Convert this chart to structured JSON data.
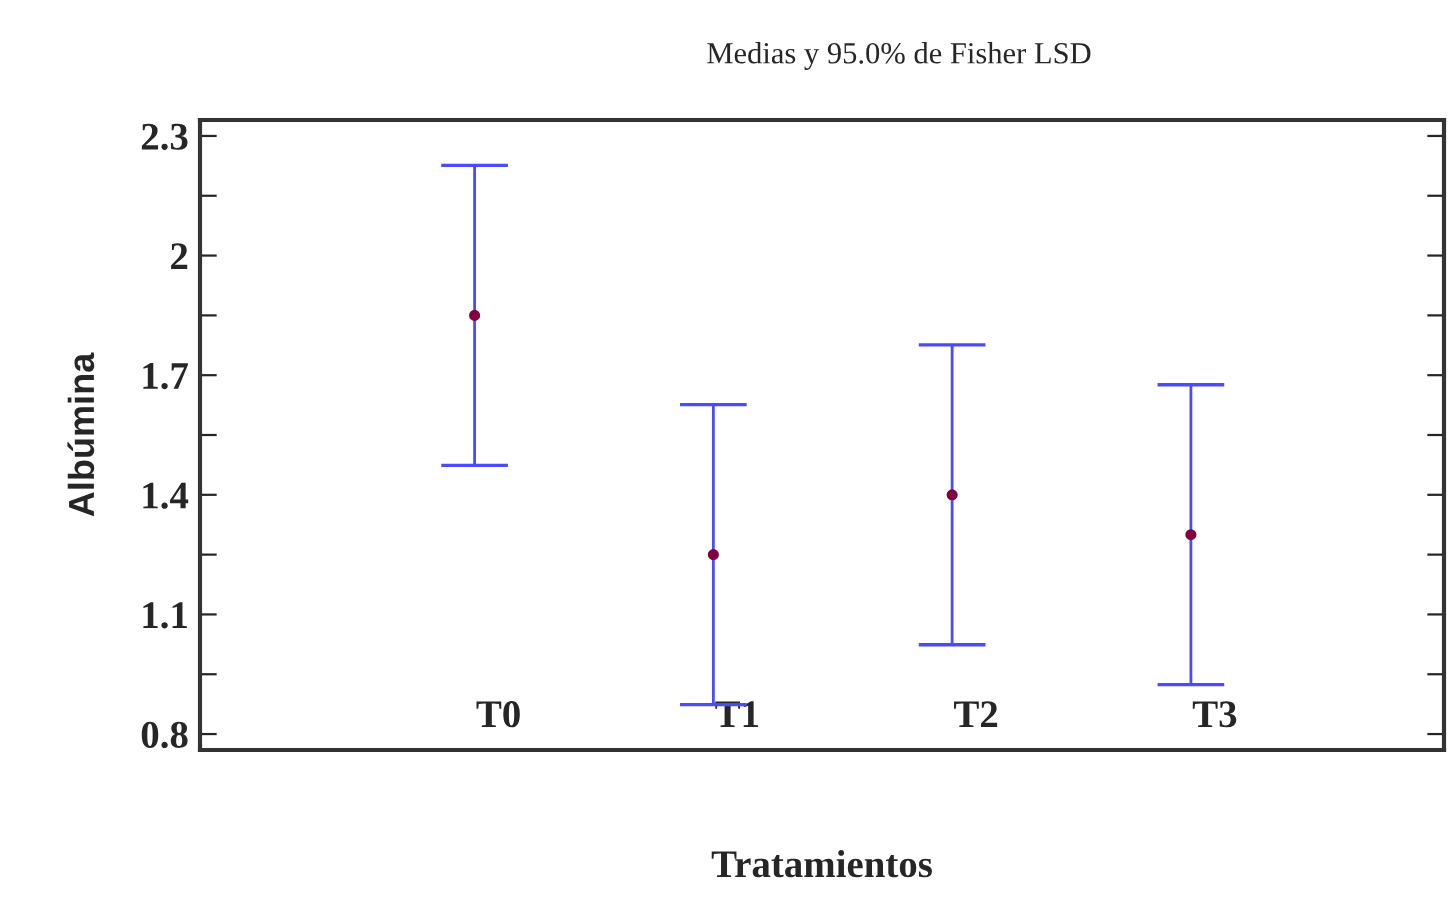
{
  "chart_data": {
    "type": "scatter",
    "title": "Medias y 95.0% de Fisher LSD",
    "xlabel": "Tratamientos",
    "ylabel": "Albúmina",
    "categories": [
      "T0",
      "T1",
      "T2",
      "T3"
    ],
    "series": [
      {
        "color": "#800040",
        "values": [
          1.85,
          1.25,
          1.4,
          1.3
        ],
        "errors": [
          0.376,
          0.376,
          0.376,
          0.376
        ]
      }
    ],
    "ylim": [
      0.76,
      2.34
    ],
    "yticks": [
      0.8,
      {
        "value": 0.95,
        "label": null
      },
      1.1,
      {
        "value": 1.25,
        "label": null
      },
      1.4,
      {
        "value": 1.55,
        "label": null
      },
      1.7,
      {
        "value": 1.85,
        "label": null
      },
      2,
      {
        "value": 2.15,
        "label": null
      },
      2.3
    ],
    "marker": "circle",
    "grid": false,
    "legend": false
  }
}
